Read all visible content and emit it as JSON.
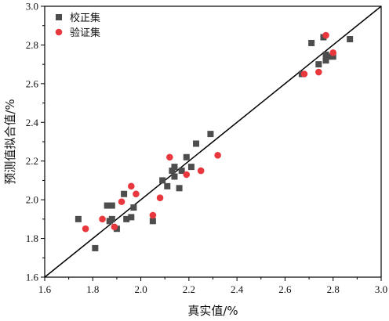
{
  "chart_data": {
    "type": "scatter",
    "xlabel": "真实值/%",
    "ylabel": "预测值拟合值/%",
    "xlim": [
      1.6,
      3.0
    ],
    "ylim": [
      1.6,
      3.0
    ],
    "x_ticks": [
      "1.6",
      "1.8",
      "2.0",
      "2.2",
      "2.4",
      "2.6",
      "2.8",
      "3.0"
    ],
    "y_ticks": [
      "1.6",
      "1.8",
      "2.0",
      "2.2",
      "2.4",
      "2.6",
      "2.8",
      "3.0"
    ],
    "legend_position": "top-left",
    "reference_line": {
      "type": "y=x",
      "color": "#000000"
    },
    "series": [
      {
        "name": "校正集",
        "marker": "square",
        "color": "#4d4d4d",
        "points": [
          [
            1.74,
            1.9
          ],
          [
            1.81,
            1.75
          ],
          [
            1.86,
            1.97
          ],
          [
            1.87,
            1.89
          ],
          [
            1.88,
            1.97
          ],
          [
            1.88,
            1.9
          ],
          [
            1.9,
            1.85
          ],
          [
            1.93,
            2.03
          ],
          [
            1.94,
            1.9
          ],
          [
            1.96,
            1.91
          ],
          [
            1.97,
            1.96
          ],
          [
            2.05,
            1.89
          ],
          [
            2.09,
            2.1
          ],
          [
            2.11,
            2.07
          ],
          [
            2.13,
            2.15
          ],
          [
            2.14,
            2.17
          ],
          [
            2.14,
            2.12
          ],
          [
            2.16,
            2.06
          ],
          [
            2.17,
            2.15
          ],
          [
            2.19,
            2.22
          ],
          [
            2.21,
            2.17
          ],
          [
            2.23,
            2.29
          ],
          [
            2.29,
            2.34
          ],
          [
            2.67,
            2.65
          ],
          [
            2.71,
            2.81
          ],
          [
            2.74,
            2.7
          ],
          [
            2.76,
            2.84
          ],
          [
            2.77,
            2.75
          ],
          [
            2.77,
            2.72
          ],
          [
            2.78,
            2.74
          ],
          [
            2.8,
            2.74
          ],
          [
            2.87,
            2.83
          ]
        ]
      },
      {
        "name": "验证集",
        "marker": "circle",
        "color": "#e8383d",
        "points": [
          [
            1.77,
            1.85
          ],
          [
            1.84,
            1.9
          ],
          [
            1.89,
            1.86
          ],
          [
            1.92,
            1.99
          ],
          [
            1.96,
            2.07
          ],
          [
            1.98,
            2.03
          ],
          [
            2.05,
            1.92
          ],
          [
            2.08,
            2.01
          ],
          [
            2.12,
            2.22
          ],
          [
            2.19,
            2.13
          ],
          [
            2.25,
            2.15
          ],
          [
            2.32,
            2.23
          ],
          [
            2.68,
            2.65
          ],
          [
            2.74,
            2.66
          ],
          [
            2.77,
            2.85
          ],
          [
            2.8,
            2.76
          ]
        ]
      }
    ]
  }
}
